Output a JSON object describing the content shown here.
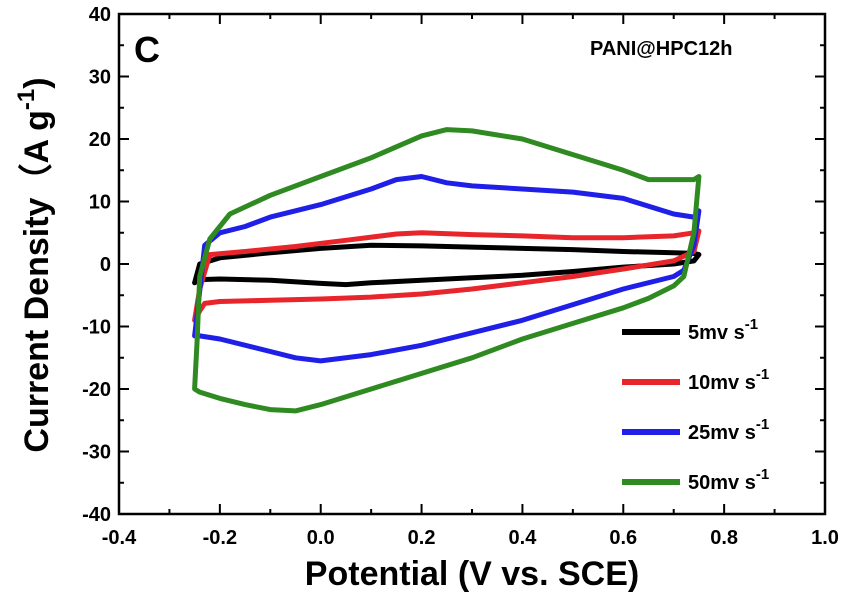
{
  "chart_data": {
    "type": "line",
    "panel_label": "C",
    "annotation": "PANI@HPC12h",
    "xlabel": "Potential (V vs. SCE)",
    "ylabel_main": "Current Density（A g",
    "ylabel_sup": "-1",
    "ylabel_close": ")",
    "xlim": [
      -0.4,
      1.0
    ],
    "ylim": [
      -40,
      40
    ],
    "xticks": [
      "-0.4",
      "-0.2",
      "0.0",
      "0.2",
      "0.4",
      "0.6",
      "0.8",
      "1.0"
    ],
    "yticks": [
      "40",
      "30",
      "20",
      "10",
      "0",
      "-10",
      "-20",
      "-30",
      "-40"
    ],
    "xtick_values": [
      -0.4,
      -0.2,
      0.0,
      0.2,
      0.4,
      0.6,
      0.8,
      1.0
    ],
    "ytick_values": [
      40,
      30,
      20,
      10,
      0,
      -10,
      -20,
      -30,
      -40
    ],
    "legend_position": "bottom-right",
    "series": [
      {
        "name": "5mv s",
        "name_sup": "-1",
        "color": "#000000",
        "x": [
          -0.25,
          -0.24,
          -0.2,
          -0.1,
          0.0,
          0.1,
          0.2,
          0.3,
          0.4,
          0.5,
          0.6,
          0.7,
          0.74,
          0.75,
          0.74,
          0.7,
          0.6,
          0.5,
          0.4,
          0.3,
          0.2,
          0.1,
          0.05,
          0.0,
          -0.1,
          -0.2,
          -0.24,
          -0.25
        ],
        "y": [
          -3,
          0,
          1,
          1.8,
          2.5,
          3,
          2.9,
          2.7,
          2.5,
          2.3,
          2.0,
          1.8,
          1.7,
          1.5,
          0.5,
          0,
          -0.5,
          -1.2,
          -1.8,
          -2.2,
          -2.6,
          -3.0,
          -3.3,
          -3.1,
          -2.6,
          -2.4,
          -2.5,
          -3
        ]
      },
      {
        "name": "10mv s",
        "name_sup": "-1",
        "color": "#e8252b",
        "x": [
          -0.25,
          -0.24,
          -0.22,
          -0.15,
          -0.05,
          0.05,
          0.15,
          0.2,
          0.3,
          0.4,
          0.5,
          0.6,
          0.7,
          0.74,
          0.75,
          0.74,
          0.7,
          0.6,
          0.5,
          0.4,
          0.3,
          0.2,
          0.1,
          0.0,
          -0.1,
          -0.2,
          -0.23,
          -0.24,
          -0.25
        ],
        "y": [
          -9,
          -4,
          1.5,
          2,
          2.8,
          3.8,
          4.8,
          5,
          4.7,
          4.5,
          4.2,
          4.2,
          4.5,
          5,
          5.3,
          2,
          0.5,
          -0.8,
          -2,
          -3,
          -4,
          -4.8,
          -5.3,
          -5.6,
          -5.8,
          -6.0,
          -6.3,
          -7.5,
          -9
        ]
      },
      {
        "name": "25mv s",
        "name_sup": "-1",
        "color": "#1f1fe8",
        "x": [
          -0.25,
          -0.245,
          -0.23,
          -0.2,
          -0.15,
          -0.1,
          0.0,
          0.1,
          0.15,
          0.2,
          0.25,
          0.3,
          0.4,
          0.5,
          0.6,
          0.7,
          0.74,
          0.75,
          0.74,
          0.72,
          0.7,
          0.6,
          0.5,
          0.4,
          0.3,
          0.2,
          0.1,
          0.0,
          -0.05,
          -0.1,
          -0.2,
          -0.24,
          -0.25
        ],
        "y": [
          -11.5,
          -8,
          3,
          5,
          6,
          7.5,
          9.5,
          12,
          13.5,
          14,
          13,
          12.5,
          12,
          11.5,
          10.5,
          8,
          7.5,
          8.5,
          3,
          -1,
          -2,
          -4,
          -6.5,
          -9,
          -11,
          -13,
          -14.5,
          -15.5,
          -15,
          -14,
          -12,
          -11.5,
          -11.5
        ]
      },
      {
        "name": "50mv s",
        "name_sup": "-1",
        "color": "#2f8a22",
        "x": [
          -0.25,
          -0.245,
          -0.24,
          -0.22,
          -0.18,
          -0.1,
          0.0,
          0.1,
          0.2,
          0.25,
          0.3,
          0.4,
          0.5,
          0.6,
          0.65,
          0.7,
          0.74,
          0.75,
          0.74,
          0.72,
          0.7,
          0.65,
          0.6,
          0.5,
          0.4,
          0.3,
          0.2,
          0.1,
          0.0,
          -0.05,
          -0.1,
          -0.15,
          -0.2,
          -0.24,
          -0.25
        ],
        "y": [
          -20,
          -12,
          -2,
          4,
          8,
          11,
          14,
          17,
          20.5,
          21.5,
          21.3,
          20,
          17.5,
          15,
          13.5,
          13.5,
          13.5,
          14,
          5,
          -2,
          -3.5,
          -5.5,
          -7,
          -9.5,
          -12,
          -15,
          -17.5,
          -20,
          -22.5,
          -23.5,
          -23.3,
          -22.5,
          -21.5,
          -20.5,
          -20
        ]
      }
    ]
  }
}
